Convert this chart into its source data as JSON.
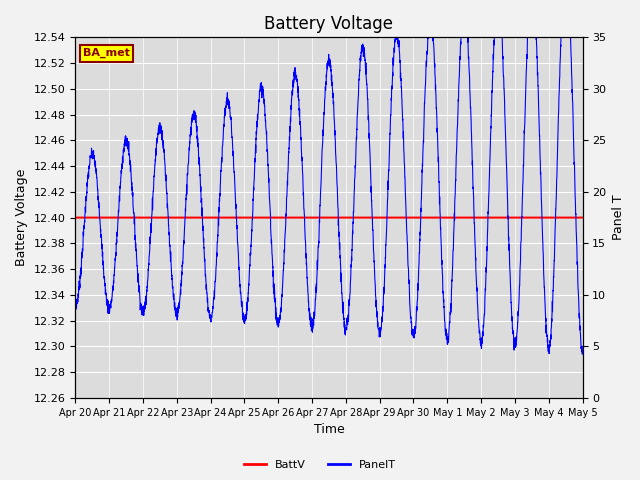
{
  "title": "Battery Voltage",
  "xlabel": "Time",
  "ylabel_left": "Battery Voltage",
  "ylabel_right": "Panel T",
  "batt_v": 12.4,
  "left_ylim": [
    12.26,
    12.54
  ],
  "right_ylim": [
    0,
    35
  ],
  "left_yticks": [
    12.26,
    12.28,
    12.3,
    12.32,
    12.34,
    12.36,
    12.38,
    12.4,
    12.42,
    12.44,
    12.46,
    12.48,
    12.5,
    12.52,
    12.54
  ],
  "right_yticks": [
    0,
    5,
    10,
    15,
    20,
    25,
    30,
    35
  ],
  "x_tick_labels": [
    "Apr 20",
    "Apr 21",
    "Apr 22",
    "Apr 23",
    "Apr 24",
    "Apr 25",
    "Apr 26",
    "Apr 27",
    "Apr 28",
    "Apr 29",
    "Apr 30",
    "May 1",
    "May 2",
    "May 3",
    "May 4",
    "May 5"
  ],
  "batt_color": "#ff0000",
  "panel_color": "#0000ff",
  "bg_color": "#dcdcdc",
  "annotation_text": "BA_met",
  "annotation_bg": "#ffff00",
  "annotation_border": "#8b0000",
  "title_fontsize": 12,
  "axis_label_fontsize": 9,
  "tick_fontsize": 8,
  "fig_width": 6.4,
  "fig_height": 4.8,
  "fig_dpi": 100
}
